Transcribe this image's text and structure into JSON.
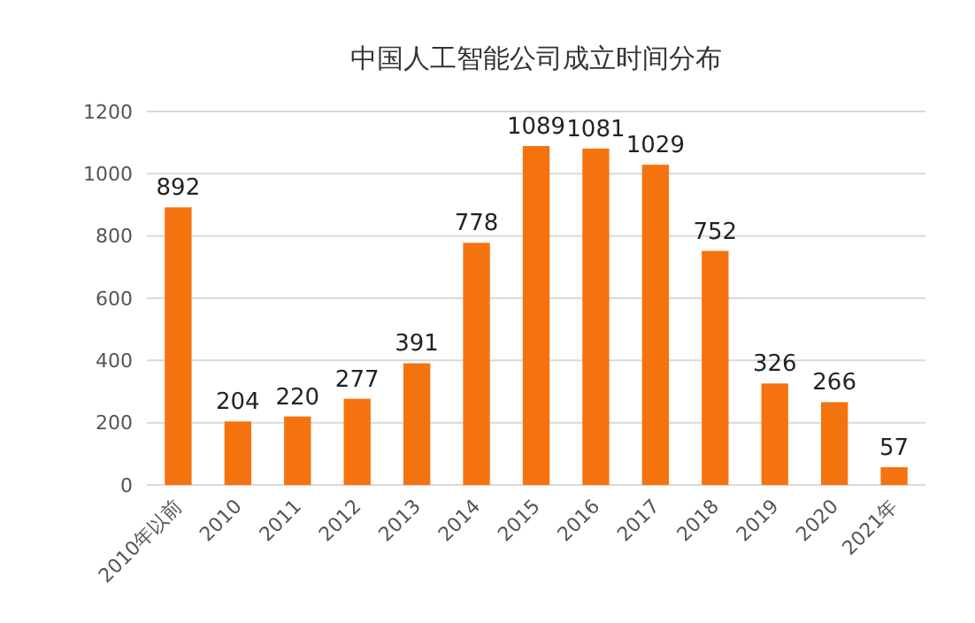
{
  "chart_data": {
    "type": "bar",
    "title": "中国人工智能公司成立时间分布",
    "categories": [
      "2010年以前",
      "2010",
      "2011",
      "2012",
      "2013",
      "2014",
      "2015",
      "2016",
      "2017",
      "2018",
      "2019",
      "2020",
      "2021年"
    ],
    "values": [
      892,
      204,
      220,
      277,
      391,
      778,
      1089,
      1081,
      1029,
      752,
      326,
      266,
      57
    ],
    "color": "#f5730f",
    "ylim": [
      0,
      1200
    ],
    "yticks": [
      0,
      200,
      400,
      600,
      800,
      1000,
      1200
    ],
    "grid": "y",
    "data_labels": true
  }
}
